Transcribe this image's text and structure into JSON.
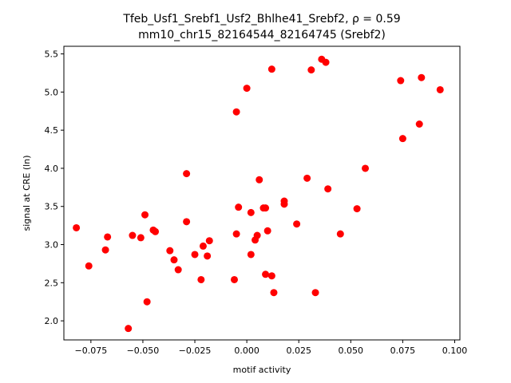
{
  "chart_data": {
    "type": "scatter",
    "title_line1": "Tfeb_Usf1_Srebf1_Usf2_Bhlhe41_Srebf2, ρ = 0.59",
    "title_line2": "mm10_chr15_82164544_82164745 (Srebf2)",
    "xlabel": "motif activity",
    "ylabel": "signal at CRE (ln)",
    "xlim": [
      -0.088,
      0.1025
    ],
    "ylim": [
      1.75,
      5.6
    ],
    "xticks": [
      -0.075,
      -0.05,
      -0.025,
      0.0,
      0.025,
      0.05,
      0.075,
      0.1
    ],
    "xtick_labels": [
      "−0.075",
      "−0.050",
      "−0.025",
      "0.000",
      "0.025",
      "0.050",
      "0.075",
      "0.100"
    ],
    "yticks": [
      2.0,
      2.5,
      3.0,
      3.5,
      4.0,
      4.5,
      5.0,
      5.5
    ],
    "ytick_labels": [
      "2.0",
      "2.5",
      "3.0",
      "3.5",
      "4.0",
      "4.5",
      "5.0",
      "5.5"
    ],
    "marker_color": "#ff0000",
    "points": [
      [
        -0.082,
        3.22
      ],
      [
        -0.076,
        2.72
      ],
      [
        -0.068,
        2.93
      ],
      [
        -0.067,
        3.1
      ],
      [
        -0.057,
        1.9
      ],
      [
        -0.055,
        3.12
      ],
      [
        -0.051,
        3.09
      ],
      [
        -0.049,
        3.39
      ],
      [
        -0.048,
        2.25
      ],
      [
        -0.045,
        3.19
      ],
      [
        -0.044,
        3.17
      ],
      [
        -0.037,
        2.92
      ],
      [
        -0.035,
        2.8
      ],
      [
        -0.033,
        2.67
      ],
      [
        -0.029,
        3.93
      ],
      [
        -0.029,
        3.3
      ],
      [
        -0.025,
        2.87
      ],
      [
        -0.022,
        2.54
      ],
      [
        -0.021,
        2.98
      ],
      [
        -0.019,
        2.85
      ],
      [
        -0.018,
        3.05
      ],
      [
        -0.006,
        2.54
      ],
      [
        -0.005,
        3.14
      ],
      [
        -0.005,
        4.74
      ],
      [
        -0.004,
        3.49
      ],
      [
        0.0,
        5.05
      ],
      [
        0.002,
        3.42
      ],
      [
        0.002,
        2.87
      ],
      [
        0.004,
        3.06
      ],
      [
        0.005,
        3.12
      ],
      [
        0.006,
        3.85
      ],
      [
        0.008,
        3.48
      ],
      [
        0.009,
        3.48
      ],
      [
        0.009,
        2.61
      ],
      [
        0.01,
        3.18
      ],
      [
        0.012,
        5.3
      ],
      [
        0.012,
        2.59
      ],
      [
        0.013,
        2.37
      ],
      [
        0.018,
        3.53
      ],
      [
        0.018,
        3.57
      ],
      [
        0.024,
        3.27
      ],
      [
        0.029,
        3.87
      ],
      [
        0.031,
        5.29
      ],
      [
        0.033,
        2.37
      ],
      [
        0.036,
        5.43
      ],
      [
        0.038,
        5.39
      ],
      [
        0.039,
        3.73
      ],
      [
        0.045,
        3.14
      ],
      [
        0.053,
        3.47
      ],
      [
        0.057,
        4.0
      ],
      [
        0.074,
        5.15
      ],
      [
        0.075,
        4.39
      ],
      [
        0.083,
        4.58
      ],
      [
        0.084,
        5.19
      ],
      [
        0.093,
        5.03
      ]
    ]
  }
}
